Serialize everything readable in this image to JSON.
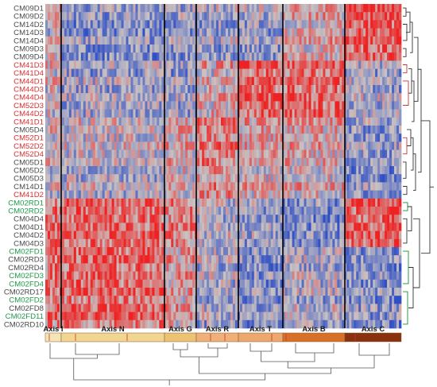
{
  "heatmap": {
    "colors": {
      "low": "#2f4fc4",
      "mid": "#c9c2c2",
      "high": "#ee2222"
    },
    "rows": [
      {
        "label": "CM09D1",
        "color": "#4a4a4a"
      },
      {
        "label": "CM09D2",
        "color": "#4a4a4a"
      },
      {
        "label": "CM14D2",
        "color": "#4a4a4a"
      },
      {
        "label": "CM14D3",
        "color": "#4a4a4a"
      },
      {
        "label": "CM14D4",
        "color": "#4a4a4a"
      },
      {
        "label": "CM09D3",
        "color": "#4a4a4a"
      },
      {
        "label": "CM09D4",
        "color": "#4a4a4a"
      },
      {
        "label": "CM41D3",
        "color": "#d93030"
      },
      {
        "label": "CM41D4",
        "color": "#d93030"
      },
      {
        "label": "CM44D1",
        "color": "#d93030"
      },
      {
        "label": "CM44D3",
        "color": "#d93030"
      },
      {
        "label": "CM44D4",
        "color": "#d93030"
      },
      {
        "label": "CM52D3",
        "color": "#d93030"
      },
      {
        "label": "CM44D2",
        "color": "#d93030"
      },
      {
        "label": "CM41D1",
        "color": "#d93030"
      },
      {
        "label": "CM05D4",
        "color": "#4a4a4a"
      },
      {
        "label": "CM52D1",
        "color": "#d93030"
      },
      {
        "label": "CM52D2",
        "color": "#d93030"
      },
      {
        "label": "CM52D4",
        "color": "#d93030"
      },
      {
        "label": "CM05D1",
        "color": "#4a4a4a"
      },
      {
        "label": "CM05D2",
        "color": "#4a4a4a"
      },
      {
        "label": "CM05D3",
        "color": "#4a4a4a"
      },
      {
        "label": "CM14D1",
        "color": "#4a4a4a"
      },
      {
        "label": "CM41D2",
        "color": "#d93030"
      },
      {
        "label": "CM02RD1",
        "color": "#1f9a4a"
      },
      {
        "label": "CM02RD2",
        "color": "#1f9a4a"
      },
      {
        "label": "CM04D4",
        "color": "#4a4a4a"
      },
      {
        "label": "CM04D1",
        "color": "#4a4a4a"
      },
      {
        "label": "CM04D2",
        "color": "#4a4a4a"
      },
      {
        "label": "CM04D3",
        "color": "#4a4a4a"
      },
      {
        "label": "CM02FD1",
        "color": "#1f9a4a"
      },
      {
        "label": "CM02RD3",
        "color": "#4a4a4a"
      },
      {
        "label": "CM02RD4",
        "color": "#4a4a4a"
      },
      {
        "label": "CM02FD3",
        "color": "#1f9a4a"
      },
      {
        "label": "CM02FD4",
        "color": "#1f9a4a"
      },
      {
        "label": "CM02RD17",
        "color": "#4a4a4a"
      },
      {
        "label": "CM02FD2",
        "color": "#1f9a4a"
      },
      {
        "label": "CM02FD8",
        "color": "#4a4a4a"
      },
      {
        "label": "CM02FD11",
        "color": "#1f9a4a"
      },
      {
        "label": "CM02RD10",
        "color": "#4a4a4a"
      }
    ],
    "axes": [
      {
        "name": "Axis I",
        "color": "#f6e4b6"
      },
      {
        "name": "Axis N",
        "color": "#f2d591"
      },
      {
        "name": "Axis G",
        "color": "#ecc374"
      },
      {
        "name": "Axis R",
        "color": "#f0b07a"
      },
      {
        "name": "Axis T",
        "color": "#eea76e"
      },
      {
        "name": "Axis B",
        "color": "#d9702a"
      },
      {
        "name": "Axis C",
        "color": "#8a3210"
      }
    ]
  }
}
